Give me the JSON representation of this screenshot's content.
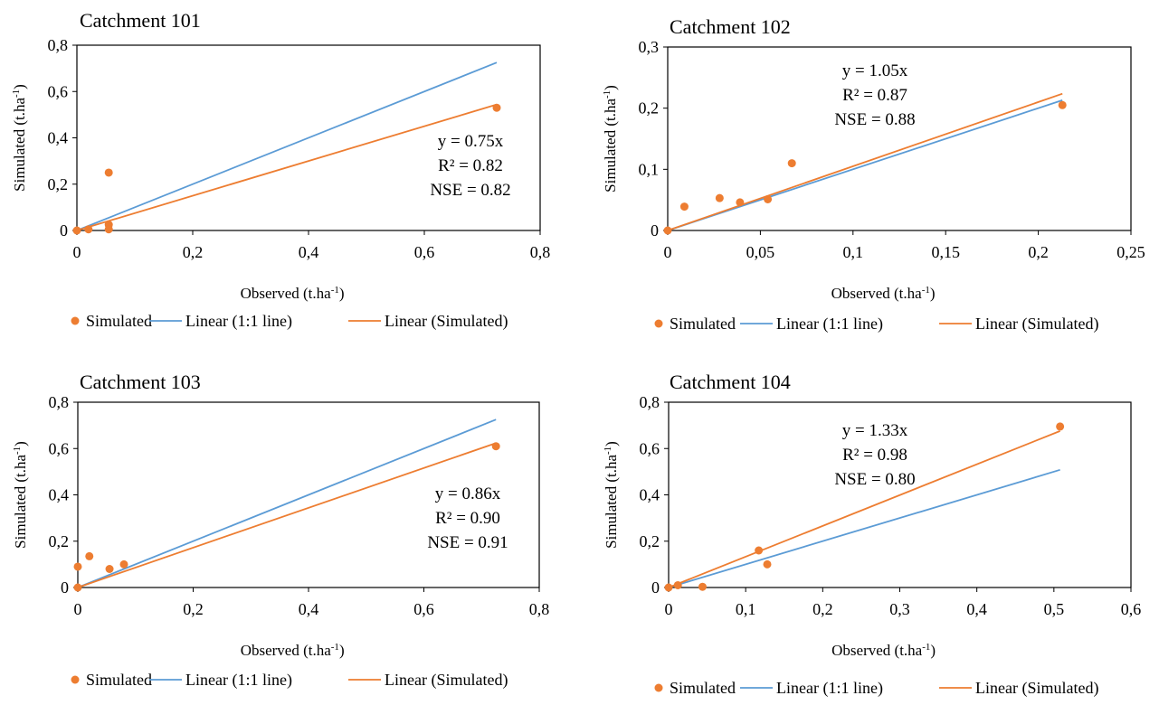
{
  "chart_data": [
    {
      "type": "scatter",
      "title": "Catchment 101",
      "xlabel": "Observed (t.ha",
      "ylabel": "Simulated (t.ha",
      "unit_sup": "-1",
      "xlim": [
        0,
        0.8
      ],
      "ylim": [
        0,
        0.8
      ],
      "xticks": [
        "0",
        "0,2",
        "0,4",
        "0,6",
        "0,8"
      ],
      "yticks": [
        "0",
        "0,2",
        "0,4",
        "0,6",
        "0,8"
      ],
      "series": [
        {
          "name": "Simulated",
          "kind": "points",
          "points": [
            [
              0,
              0
            ],
            [
              0.02,
              0.005
            ],
            [
              0.055,
              0.25
            ],
            [
              0.055,
              0.025
            ],
            [
              0.055,
              0.005
            ],
            [
              0.725,
              0.53
            ]
          ]
        },
        {
          "name": "Linear (1:1 line)",
          "kind": "line",
          "slope": 1.0,
          "x_end": 0.725
        },
        {
          "name": "Linear (Simulated)",
          "kind": "line",
          "slope": 0.75,
          "x_end": 0.725
        }
      ],
      "annotation": [
        "y = 0.75x",
        "R² = 0.82",
        "NSE = 0.82"
      ],
      "legend": "bottom"
    },
    {
      "type": "scatter",
      "title": "Catchment 102",
      "xlabel": "Observed (t.ha",
      "ylabel": "Simulated (t.ha",
      "unit_sup": "-1",
      "xlim": [
        0,
        0.25
      ],
      "ylim": [
        0,
        0.3
      ],
      "xticks": [
        "0",
        "0,05",
        "0,1",
        "0,15",
        "0,2",
        "0,25"
      ],
      "yticks": [
        "0",
        "0,1",
        "0,2",
        "0,3"
      ],
      "series": [
        {
          "name": "Simulated",
          "kind": "points",
          "points": [
            [
              0,
              0
            ],
            [
              0.009,
              0.039
            ],
            [
              0.028,
              0.053
            ],
            [
              0.039,
              0.046
            ],
            [
              0.054,
              0.051
            ],
            [
              0.067,
              0.11
            ],
            [
              0.213,
              0.205
            ]
          ]
        },
        {
          "name": "Linear (1:1 line)",
          "kind": "line",
          "slope": 1.0,
          "x_end": 0.213
        },
        {
          "name": "Linear (Simulated)",
          "kind": "line",
          "slope": 1.05,
          "x_end": 0.213
        }
      ],
      "annotation": [
        "y = 1.05x",
        "R² = 0.87",
        "NSE = 0.88"
      ],
      "legend": "bottom"
    },
    {
      "type": "scatter",
      "title": "Catchment 103",
      "xlabel": "Observed (t.ha",
      "ylabel": "Simulated (t.ha",
      "unit_sup": "-1",
      "xlim": [
        0,
        0.8
      ],
      "ylim": [
        0,
        0.8
      ],
      "xticks": [
        "0",
        "0,2",
        "0,4",
        "0,6",
        "0,8"
      ],
      "yticks": [
        "0",
        "0,2",
        "0,4",
        "0,6",
        "0,8"
      ],
      "series": [
        {
          "name": "Simulated",
          "kind": "points",
          "points": [
            [
              0,
              0.09
            ],
            [
              0.02,
              0.135
            ],
            [
              0.055,
              0.08
            ],
            [
              0.08,
              0.1
            ],
            [
              0,
              0
            ],
            [
              0.725,
              0.61
            ]
          ]
        },
        {
          "name": "Linear (1:1 line)",
          "kind": "line",
          "slope": 1.0,
          "x_end": 0.725
        },
        {
          "name": "Linear (Simulated)",
          "kind": "line",
          "slope": 0.86,
          "x_end": 0.725
        }
      ],
      "annotation": [
        "y = 0.86x",
        "R² = 0.90",
        "NSE = 0.91"
      ],
      "legend": "bottom"
    },
    {
      "type": "scatter",
      "title": "Catchment 104",
      "xlabel": "Observed (t.ha",
      "ylabel": "Simulated (t.ha",
      "unit_sup": "-1",
      "xlim": [
        0,
        0.6
      ],
      "ylim": [
        0,
        0.8
      ],
      "xticks": [
        "0",
        "0,1",
        "0,2",
        "0,3",
        "0,4",
        "0,5",
        "0,6"
      ],
      "yticks": [
        "0",
        "0,2",
        "0,4",
        "0,6",
        "0,8"
      ],
      "series": [
        {
          "name": "Simulated",
          "kind": "points",
          "points": [
            [
              0,
              0
            ],
            [
              0.012,
              0.01
            ],
            [
              0.044,
              0.003
            ],
            [
              0.117,
              0.16
            ],
            [
              0.128,
              0.1
            ],
            [
              0.508,
              0.695
            ]
          ]
        },
        {
          "name": "Linear (1:1 line)",
          "kind": "line",
          "slope": 1.0,
          "x_end": 0.508
        },
        {
          "name": "Linear (Simulated)",
          "kind": "line",
          "slope": 1.33,
          "x_end": 0.508
        }
      ],
      "annotation": [
        "y = 1.33x",
        "R² = 0.98",
        "NSE = 0.80"
      ],
      "legend": "bottom"
    }
  ],
  "colors": {
    "points": "#ed7d31",
    "one_to_one": "#5b9bd5",
    "fit": "#ed7d31"
  }
}
